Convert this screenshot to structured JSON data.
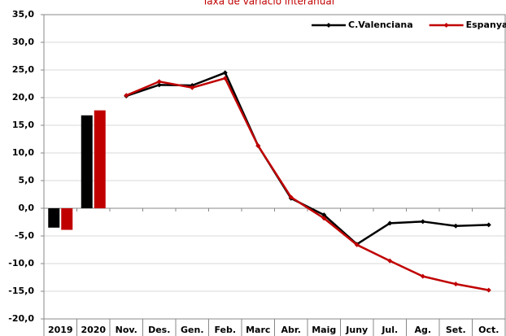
{
  "chart_data": {
    "type": "combo",
    "title": "Taxa de variació interanual",
    "bar_categories": [
      "2019",
      "2020"
    ],
    "line_categories": [
      "Nov.",
      "Des.",
      "Gen.",
      "Feb.",
      "Marc",
      "Abr.",
      "Maig",
      "Juny",
      "Jul.",
      "Ag.",
      "Set.",
      "Oct."
    ],
    "series": [
      {
        "name": "C.Valenciana",
        "color": "#000000",
        "bar_values": [
          -3.5,
          16.8
        ],
        "line_values": [
          20.3,
          22.3,
          22.2,
          24.5,
          11.3,
          1.8,
          -1.2,
          -6.5,
          -2.7,
          -2.4,
          -3.2,
          -3.0
        ]
      },
      {
        "name": "Espanya",
        "color": "#c00000",
        "bar_values": [
          -3.9,
          17.7
        ],
        "line_values": [
          20.4,
          22.9,
          21.8,
          23.5,
          11.3,
          2.0,
          -1.8,
          -6.6,
          -9.5,
          -12.3,
          -13.7,
          -14.8
        ]
      }
    ],
    "ylim": [
      -20,
      35
    ],
    "yticks": [
      {
        "value": -20,
        "label": "-20,0"
      },
      {
        "value": -15,
        "label": "-15,0"
      },
      {
        "value": -10,
        "label": "-10,0"
      },
      {
        "value": -5,
        "label": "-5,0"
      },
      {
        "value": 0,
        "label": "0,0"
      },
      {
        "value": 5,
        "label": "5,0"
      },
      {
        "value": 10,
        "label": "10,0"
      },
      {
        "value": 15,
        "label": "15,0"
      },
      {
        "value": 20,
        "label": "20,0"
      },
      {
        "value": 25,
        "label": "25,0"
      },
      {
        "value": 30,
        "label": "30,0"
      },
      {
        "value": 35,
        "label": "35,0"
      }
    ],
    "grid": true,
    "legend": "top-right"
  }
}
